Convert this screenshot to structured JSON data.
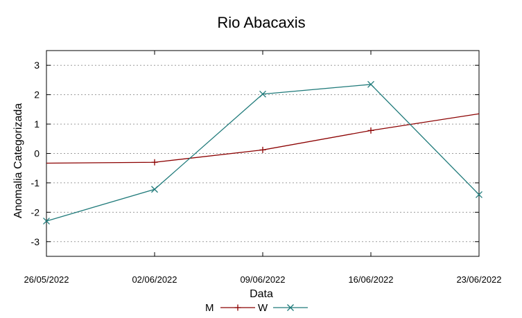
{
  "chart_data": {
    "type": "line",
    "title": "Rio Abacaxis",
    "xlabel": "Data",
    "ylabel": "Anomalia Categorizada",
    "categories": [
      "26/05/2022",
      "02/06/2022",
      "09/06/2022",
      "16/06/2022",
      "23/06/2022"
    ],
    "yticks": [
      "3",
      "2",
      "1",
      "0",
      "-1",
      "-2",
      "-3"
    ],
    "ylim": [
      -3.5,
      3.5
    ],
    "grid": true,
    "legend_position": "bottom",
    "series": [
      {
        "name": "M",
        "color": "#8b0000",
        "marker": "plus",
        "values": [
          -0.33,
          -0.3,
          0.12,
          0.78,
          1.35
        ],
        "marked": [
          false,
          true,
          true,
          true,
          false
        ]
      },
      {
        "name": "W",
        "color": "#1f7a7a",
        "marker": "cross",
        "values": [
          -2.3,
          -1.22,
          2.02,
          2.35,
          -1.4
        ],
        "marked": [
          true,
          true,
          true,
          true,
          true
        ]
      }
    ]
  }
}
